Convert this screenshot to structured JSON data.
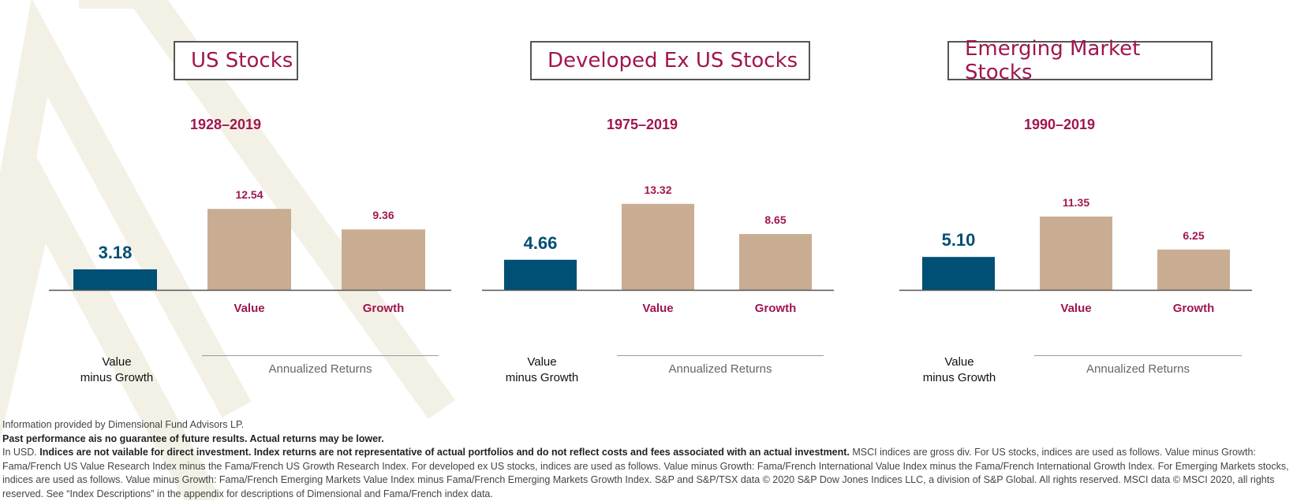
{
  "colors": {
    "accent": "#a0164f",
    "value_minus_growth_bar": "#004f75",
    "returns_bar": "#c9ad93",
    "axis": "#555555"
  },
  "chart_data": [
    {
      "type": "bar",
      "title": "US Stocks",
      "subtitle": "1928–2019",
      "categories": [
        "Value\nminus Growth",
        "Value",
        "Growth"
      ],
      "values": [
        3.18,
        12.54,
        9.36
      ],
      "value_labels": [
        "3.18",
        "12.54",
        "9.36"
      ],
      "group_label": "Annualized Returns"
    },
    {
      "type": "bar",
      "title": "Developed Ex US Stocks",
      "subtitle": "1975–2019",
      "categories": [
        "Value\nminus Growth",
        "Value",
        "Growth"
      ],
      "values": [
        4.66,
        13.32,
        8.65
      ],
      "value_labels": [
        "4.66",
        "13.32",
        "8.65"
      ],
      "group_label": "Annualized Returns"
    },
    {
      "type": "bar",
      "title": "Emerging Market Stocks",
      "subtitle": "1990–2019",
      "categories": [
        "Value\nminus Growth",
        "Value",
        "Growth"
      ],
      "values": [
        5.1,
        11.35,
        6.25
      ],
      "value_labels": [
        "5.10",
        "11.35",
        "6.25"
      ],
      "group_label": "Annualized Returns"
    }
  ],
  "labels": {
    "vmg_line1": "Value",
    "vmg_line2": "minus Growth",
    "value": "Value",
    "growth": "Growth"
  },
  "footer": {
    "line1": "Information provided by Dimensional Fund Advisors LP.",
    "line2": "Past performance ais no guarantee of future results. Actual returns may be lower.",
    "line3_prefix": "In USD. ",
    "line3_bold": "Indices are not vailable for direct investment. Index returns are not representative of actual portfolios and do not reflect costs and fees associated with an actual investment.",
    "line3_rest": " MSCI indices are gross div. For US stocks, indices are used as follows. Value minus Growth: Fama/French US Value Research Index minus the Fama/French US Growth Research Index. For developed ex US stocks, indices are used as follows. Value minus Growth: Fama/French International Value Index minus the Fama/French International Growth Index. For Emerging Markets stocks, indices are used as follows. Value minus Growth: Fama/French Emerging Markets Value Index minus Fama/French Emerging Markets Growth Index. S&P and S&P/TSX data © 2020 S&P Dow Jones Indices LLC, a division of S&P Global. All rights reserved. MSCI data © MSCI 2020, all rights reserved. See “Index Descriptions” in the appendix for descriptions of Dimensional and Fama/French index data."
  }
}
